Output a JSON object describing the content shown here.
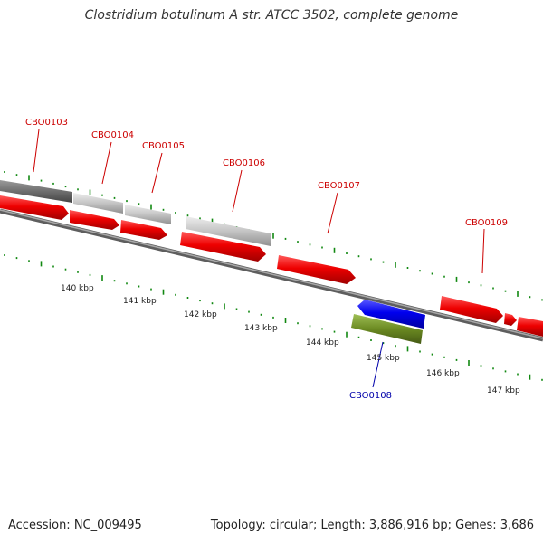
{
  "title": "Clostridium botulinum A str. ATCC 3502, complete genome",
  "footer": {
    "accession": "Accession: NC_009495",
    "summary": "Topology: circular; Length: 3,886,916 bp; Genes: 3,686"
  },
  "colors": {
    "forward_cds": "#ee0000",
    "reverse_cds": "#0000ee",
    "reverse_misc": "#6b8a22",
    "gene_grey_dark": "#6e6e6e",
    "gene_grey_light": "#c4c4c4",
    "label_red": "#cc0000",
    "label_blue": "#0000aa",
    "tick_green": "#118811",
    "backbone": "#7a7a7a"
  },
  "gene_labels": [
    {
      "id": "CBO0103",
      "strand": "forward"
    },
    {
      "id": "CBO0104",
      "strand": "forward"
    },
    {
      "id": "CBO0105",
      "strand": "forward"
    },
    {
      "id": "CBO0106",
      "strand": "forward"
    },
    {
      "id": "CBO0107",
      "strand": "forward"
    },
    {
      "id": "CBO0108",
      "strand": "reverse"
    },
    {
      "id": "CBO0109",
      "strand": "forward"
    }
  ],
  "kbp_labels": [
    "140 kbp",
    "141 kbp",
    "142 kbp",
    "143 kbp",
    "144 kbp",
    "145 kbp",
    "146 kbp",
    "147 kbp"
  ]
}
